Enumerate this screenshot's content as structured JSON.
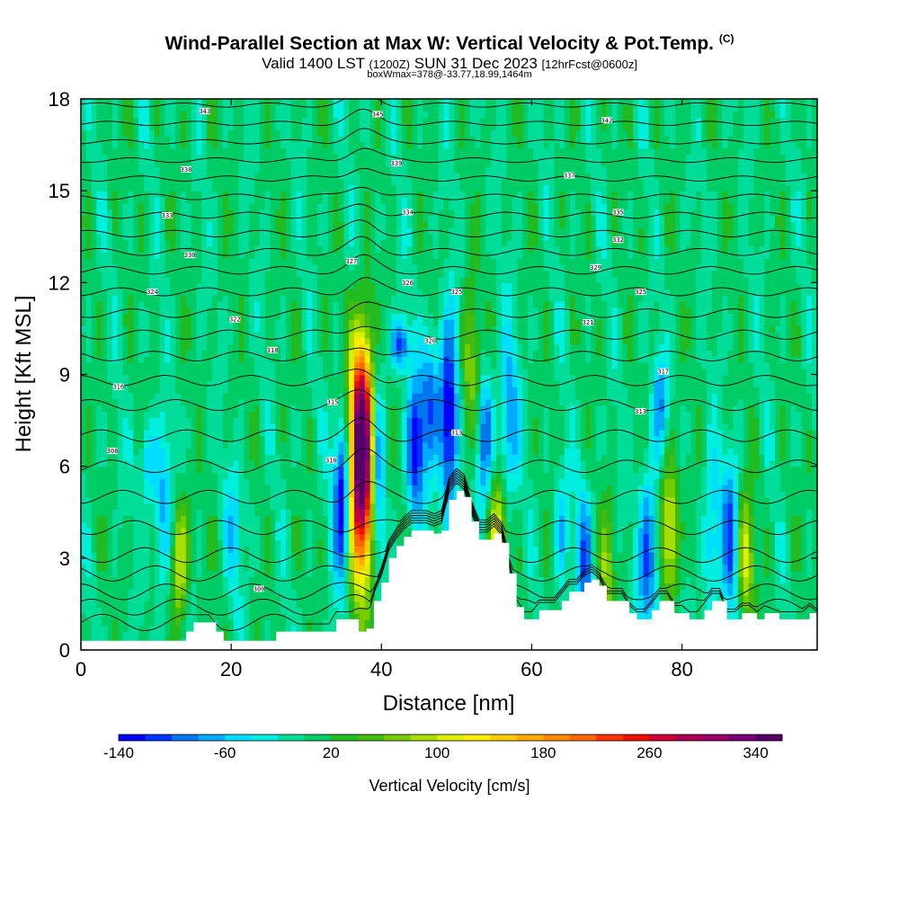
{
  "chart_data": {
    "type": "heatmap",
    "title": "Wind-Parallel Section at Max W: Vertical Velocity & Pot.Temp.",
    "title_mark": "(C)",
    "subtitle_main": "Valid 1400 LST",
    "subtitle_utc": "(1200Z)",
    "subtitle_date": "SUN 31 Dec 2023",
    "subtitle_fcst": "[12hrFcst@0600z]",
    "info_line": "boxWmax=378@-33.77,18.99,1464m",
    "xlabel": "Distance [nm]",
    "ylabel": "Height [Kft MSL]",
    "xlim": [
      0,
      98
    ],
    "ylim": [
      0,
      18
    ],
    "x_ticks": [
      0,
      20,
      40,
      60,
      80
    ],
    "x_tick_labels": [
      "0",
      "20",
      "40",
      "60",
      "80"
    ],
    "y_ticks": [
      0,
      3,
      6,
      9,
      12,
      15,
      18
    ],
    "y_tick_labels": [
      "0",
      "3",
      "6",
      "9",
      "12",
      "15",
      "18"
    ],
    "colorbar": {
      "label": "Vertical Velocity [cm/s]",
      "min": -140,
      "max": 360,
      "step": 20,
      "tick_values": [
        -140,
        -60,
        20,
        100,
        180,
        260,
        340
      ],
      "tick_labels": [
        "-140",
        "-60",
        "20",
        "100",
        "180",
        "260",
        "340"
      ],
      "colors": [
        "#0000ff",
        "#0033ff",
        "#0077ee",
        "#00aaff",
        "#00ddff",
        "#00eedd",
        "#00dd99",
        "#00cc66",
        "#22bb22",
        "#44bb11",
        "#77cc00",
        "#aadd00",
        "#ddee00",
        "#ffee00",
        "#ffcc00",
        "#ffaa00",
        "#ff8800",
        "#ff6600",
        "#ff3300",
        "#ee1100",
        "#cc0033",
        "#aa0055",
        "#990066",
        "#770077",
        "#550066"
      ]
    },
    "terrain_kft": [
      [
        0,
        0.3
      ],
      [
        5,
        0.3
      ],
      [
        10,
        0.3
      ],
      [
        13,
        0.3
      ],
      [
        14,
        0.6
      ],
      [
        15,
        0.9
      ],
      [
        17,
        0.9
      ],
      [
        18,
        0.6
      ],
      [
        19,
        0.3
      ],
      [
        25,
        0.3
      ],
      [
        26,
        0.6
      ],
      [
        33,
        0.6
      ],
      [
        34,
        1.0
      ],
      [
        36,
        1.0
      ],
      [
        37,
        0.6
      ],
      [
        38,
        0.7
      ],
      [
        39,
        1.6
      ],
      [
        40,
        2.2
      ],
      [
        41,
        3.0
      ],
      [
        42,
        3.4
      ],
      [
        43,
        3.7
      ],
      [
        44,
        3.9
      ],
      [
        46,
        3.9
      ],
      [
        47,
        3.8
      ],
      [
        48,
        3.9
      ],
      [
        49,
        4.9
      ],
      [
        50,
        5.2
      ],
      [
        51,
        5.0
      ],
      [
        52,
        4.2
      ],
      [
        53,
        3.6
      ],
      [
        54,
        3.6
      ],
      [
        55,
        3.8
      ],
      [
        56,
        3.5
      ],
      [
        57,
        2.5
      ],
      [
        58,
        1.4
      ],
      [
        59,
        1.0
      ],
      [
        60,
        1.0
      ],
      [
        61,
        1.3
      ],
      [
        63,
        1.3
      ],
      [
        64,
        1.6
      ],
      [
        65,
        1.9
      ],
      [
        66,
        1.9
      ],
      [
        67,
        2.2
      ],
      [
        68,
        2.3
      ],
      [
        69,
        2.1
      ],
      [
        70,
        1.6
      ],
      [
        72,
        1.6
      ],
      [
        73,
        1.2
      ],
      [
        74,
        1.0
      ],
      [
        75,
        1.0
      ],
      [
        76,
        1.3
      ],
      [
        77,
        1.6
      ],
      [
        78,
        1.6
      ],
      [
        79,
        1.2
      ],
      [
        80,
        1.2
      ],
      [
        81,
        1.0
      ],
      [
        82,
        1.0
      ],
      [
        83,
        1.3
      ],
      [
        84,
        1.6
      ],
      [
        85,
        1.6
      ],
      [
        86,
        1.0
      ],
      [
        87,
        1.0
      ],
      [
        88,
        1.2
      ],
      [
        89,
        1.2
      ],
      [
        90,
        1.0
      ],
      [
        91,
        1.2
      ],
      [
        93,
        1.0
      ],
      [
        96,
        1.0
      ],
      [
        97,
        1.2
      ],
      [
        98,
        1.0
      ]
    ],
    "velocity_features": [
      {
        "x": 37.3,
        "z": 6.0,
        "sx": 1.1,
        "sz": 2.6,
        "w": 330
      },
      {
        "x": 37.5,
        "z": 7.6,
        "sx": 0.9,
        "sz": 2.0,
        "w": 120
      },
      {
        "x": 34.8,
        "z": 5.0,
        "sx": 0.8,
        "sz": 1.8,
        "w": -160
      },
      {
        "x": 39.6,
        "z": 6.0,
        "sx": 0.6,
        "sz": 2.4,
        "w": -90
      },
      {
        "x": 42.5,
        "z": 10.0,
        "sx": 0.8,
        "sz": 0.6,
        "w": -120
      },
      {
        "x": 44.5,
        "z": 6.5,
        "sx": 0.8,
        "sz": 1.6,
        "w": -140
      },
      {
        "x": 46.5,
        "z": 8.2,
        "sx": 0.8,
        "sz": 1.5,
        "w": -100
      },
      {
        "x": 49.0,
        "z": 7.6,
        "sx": 0.9,
        "sz": 2.2,
        "w": -160
      },
      {
        "x": 51.8,
        "z": 9.0,
        "sx": 0.9,
        "sz": 1.8,
        "w": 80
      },
      {
        "x": 55.5,
        "z": 3.8,
        "sx": 0.8,
        "sz": 1.2,
        "w": 120
      },
      {
        "x": 53.8,
        "z": 7.0,
        "sx": 0.7,
        "sz": 1.5,
        "w": -110
      },
      {
        "x": 57.0,
        "z": 7.5,
        "sx": 0.9,
        "sz": 2.0,
        "w": -80
      },
      {
        "x": 13.2,
        "z": 3.0,
        "sx": 0.8,
        "sz": 1.4,
        "w": 110
      },
      {
        "x": 11.0,
        "z": 4.5,
        "sx": 0.8,
        "sz": 1.8,
        "w": -80
      },
      {
        "x": 9.0,
        "z": 6.2,
        "sx": 0.7,
        "sz": 1.0,
        "w": -70
      },
      {
        "x": 20.5,
        "z": 4.0,
        "sx": 1.0,
        "sz": 1.5,
        "w": -50
      },
      {
        "x": 75.5,
        "z": 3.0,
        "sx": 0.9,
        "sz": 2.0,
        "w": -110
      },
      {
        "x": 78.5,
        "z": 4.0,
        "sx": 0.8,
        "sz": 1.6,
        "w": 120
      },
      {
        "x": 77.0,
        "z": 8.0,
        "sx": 0.7,
        "sz": 1.2,
        "w": -80
      },
      {
        "x": 86.5,
        "z": 3.8,
        "sx": 0.8,
        "sz": 1.8,
        "w": -100
      },
      {
        "x": 88.5,
        "z": 3.0,
        "sx": 0.8,
        "sz": 1.5,
        "w": 100
      },
      {
        "x": 84.0,
        "z": 3.5,
        "sx": 0.8,
        "sz": 2.0,
        "w": -70
      },
      {
        "x": 67.0,
        "z": 3.0,
        "sx": 0.8,
        "sz": 1.6,
        "w": -90
      },
      {
        "x": 70.0,
        "z": 2.5,
        "sx": 0.7,
        "sz": 1.5,
        "w": 70
      },
      {
        "x": 64.0,
        "z": 4.0,
        "sx": 0.7,
        "sz": 1.6,
        "w": -60
      }
    ],
    "theta_contour_heights_kft": [
      0.9,
      1.4,
      1.9,
      2.5,
      3.1,
      4.0,
      5.0,
      6.0,
      7.0,
      8.0,
      8.8,
      9.6,
      10.3,
      11.0,
      11.7,
      12.4,
      13.0,
      13.6,
      14.2,
      14.8,
      15.4,
      16.0,
      16.6,
      17.2,
      17.8
    ],
    "theta_labels": [
      {
        "x": 23.7,
        "z": 2.0,
        "text": "300"
      },
      {
        "x": 4.2,
        "z": 6.5,
        "text": "308"
      },
      {
        "x": 33.3,
        "z": 6.2,
        "text": "310"
      },
      {
        "x": 50.0,
        "z": 7.1,
        "text": "313"
      },
      {
        "x": 74.5,
        "z": 7.8,
        "text": "313"
      },
      {
        "x": 33.5,
        "z": 8.1,
        "text": "315"
      },
      {
        "x": 5.0,
        "z": 8.6,
        "text": "316"
      },
      {
        "x": 77.5,
        "z": 9.1,
        "text": "317"
      },
      {
        "x": 25.5,
        "z": 9.8,
        "text": "318"
      },
      {
        "x": 46.5,
        "z": 10.1,
        "text": "320"
      },
      {
        "x": 67.5,
        "z": 10.7,
        "text": "321"
      },
      {
        "x": 20.5,
        "z": 10.8,
        "text": "322"
      },
      {
        "x": 9.5,
        "z": 11.7,
        "text": "324"
      },
      {
        "x": 50.0,
        "z": 11.7,
        "text": "325"
      },
      {
        "x": 74.5,
        "z": 11.7,
        "text": "325"
      },
      {
        "x": 43.5,
        "z": 12.0,
        "text": "326"
      },
      {
        "x": 36.0,
        "z": 12.7,
        "text": "327"
      },
      {
        "x": 68.5,
        "z": 12.5,
        "text": "329"
      },
      {
        "x": 14.5,
        "z": 12.9,
        "text": "330"
      },
      {
        "x": 71.5,
        "z": 13.4,
        "text": "332"
      },
      {
        "x": 11.5,
        "z": 14.2,
        "text": "333"
      },
      {
        "x": 43.5,
        "z": 14.3,
        "text": "334"
      },
      {
        "x": 71.5,
        "z": 14.3,
        "text": "335"
      },
      {
        "x": 65.0,
        "z": 15.5,
        "text": "337"
      },
      {
        "x": 14.0,
        "z": 15.7,
        "text": "338"
      },
      {
        "x": 42.0,
        "z": 15.9,
        "text": "339"
      },
      {
        "x": 70.0,
        "z": 17.3,
        "text": "342"
      },
      {
        "x": 16.5,
        "z": 17.6,
        "text": "343"
      },
      {
        "x": 39.5,
        "z": 17.5,
        "text": "345"
      }
    ]
  }
}
